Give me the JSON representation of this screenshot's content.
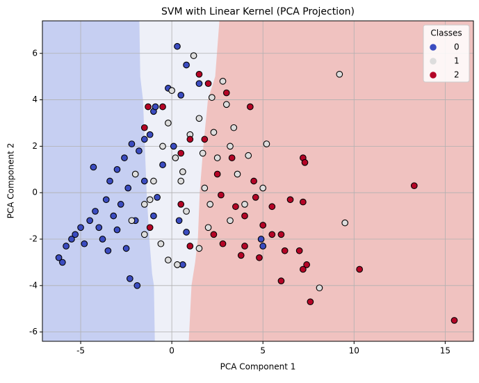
{
  "chart_data": {
    "type": "scatter",
    "title": "SVM with Linear Kernel (PCA Projection)",
    "x_label": "PCA Component 1",
    "y_label": "PCA Component 2",
    "legend_title": "Classes",
    "legend_position": "upper right",
    "grid": true,
    "xlim": [
      -7.1,
      16.55
    ],
    "ylim": [
      -6.4,
      7.4
    ],
    "xticks": [
      -5,
      0,
      5,
      10,
      15
    ],
    "yticks": [
      -6,
      -4,
      -2,
      0,
      2,
      4,
      6
    ],
    "region_colors": [
      "#c6cff2",
      "#eef0f8",
      "#f0c2c0"
    ],
    "boundaries": [
      {
        "x": [
          -1.8,
          -1.75,
          -1.6,
          -1.5,
          -1.4,
          -1.25,
          -1.1,
          -1.0,
          -0.95
        ],
        "y": [
          7.4,
          5,
          4,
          2,
          0,
          -2,
          -3.5,
          -4,
          -6.4
        ]
      },
      {
        "x": [
          2.63,
          2.4,
          2.0,
          1.75,
          1.55,
          1.45,
          1.3,
          1.1,
          0.95
        ],
        "y": [
          7.4,
          5,
          4,
          2,
          0,
          -2,
          -3,
          -4,
          -6.4
        ]
      }
    ],
    "series": [
      {
        "name": "0",
        "color": "#3b4cc0",
        "x": [
          -6.2,
          -6,
          -5.8,
          -5.5,
          -5.3,
          -5,
          -4.8,
          -4.5,
          -4.2,
          -4,
          -3.8,
          -3.6,
          -3.4,
          -3.2,
          -3,
          -2.8,
          -2.6,
          -2.4,
          -2.2,
          -2,
          -1.8,
          -1.5,
          -1.2,
          -1,
          -0.8,
          -0.5,
          -0.2,
          0.3,
          0.5,
          0.6,
          0.8,
          -2.3,
          -1.9,
          -4.3,
          -3.5,
          0.8,
          5,
          4.9,
          1.5,
          -1.5,
          0.1,
          -0.9,
          -2.5,
          -3,
          -1,
          0.4
        ],
        "y": [
          -2.8,
          -3,
          -2.3,
          -2,
          -1.8,
          -1.5,
          -2.2,
          -1.2,
          -0.8,
          -1.5,
          -2,
          -0.3,
          0.5,
          -1,
          1,
          -0.5,
          1.5,
          0.2,
          2.1,
          -1.2,
          1.8,
          0.5,
          2.5,
          3.5,
          -0.2,
          1.2,
          4.5,
          6.3,
          4.2,
          -3.1,
          5.5,
          -3.7,
          -4,
          1.1,
          -2.5,
          -1.7,
          -2.3,
          -2,
          4.7,
          2.3,
          2,
          3.7,
          -2.4,
          -1.6,
          -1,
          -1.2
        ]
      },
      {
        "name": "1",
        "color": "#dddddd",
        "x": [
          -2,
          -1.5,
          -1,
          -0.5,
          -0.2,
          0,
          0.2,
          0.5,
          0.8,
          1,
          1.2,
          1.5,
          1.8,
          2,
          2.2,
          2.5,
          2.8,
          3,
          3.2,
          3.4,
          3.6,
          4,
          4.2,
          5,
          5.2,
          -1.5,
          -0.6,
          -0.2,
          0.3,
          1.5,
          9.2,
          9.5,
          8.1,
          -2.2,
          -1.2,
          0.6,
          1.7,
          2.3,
          3.2,
          2.1
        ],
        "y": [
          0.8,
          -0.5,
          0.5,
          2,
          3,
          4.4,
          1.5,
          0.5,
          -0.8,
          2.5,
          5.9,
          3.2,
          0.2,
          -1.5,
          4.1,
          1.5,
          4.8,
          3.8,
          -1.2,
          2.8,
          0.8,
          -0.5,
          1.6,
          0.2,
          2.1,
          -1.8,
          -2.2,
          -2.9,
          -3.1,
          -2.4,
          5.1,
          -1.3,
          -4.1,
          -1.2,
          -0.3,
          0.9,
          1.7,
          2.6,
          2,
          -0.5
        ]
      },
      {
        "name": "2",
        "color": "#b40426",
        "x": [
          -1.5,
          -1.3,
          -0.5,
          0.5,
          1,
          1.5,
          1.8,
          2,
          2.3,
          2.5,
          2.8,
          3,
          3.3,
          3.5,
          4,
          4.3,
          4.5,
          5,
          5.5,
          6,
          6.2,
          6.5,
          7,
          7.2,
          7.3,
          7.2,
          7.4,
          7.6,
          7.2,
          6,
          10.3,
          13.3,
          15.5,
          4,
          4.8,
          3.8,
          5.5,
          4.6,
          -1.2,
          1,
          0.5,
          2.7
        ],
        "y": [
          2.8,
          3.7,
          3.7,
          1.7,
          2.3,
          5.1,
          2.3,
          4.7,
          -1.8,
          0.8,
          -2.2,
          4.3,
          1.5,
          -0.6,
          -1,
          3.7,
          0.5,
          -1.4,
          -0.6,
          -1.8,
          -2.5,
          -0.3,
          -2.5,
          1.5,
          1.3,
          -3.3,
          -3.1,
          -4.7,
          -0.4,
          -3.8,
          -3.3,
          0.3,
          -5.5,
          -2.3,
          -2.8,
          -2.7,
          -1.8,
          -0.2,
          -1.5,
          -2.3,
          -0.5,
          -0.1
        ]
      }
    ]
  }
}
